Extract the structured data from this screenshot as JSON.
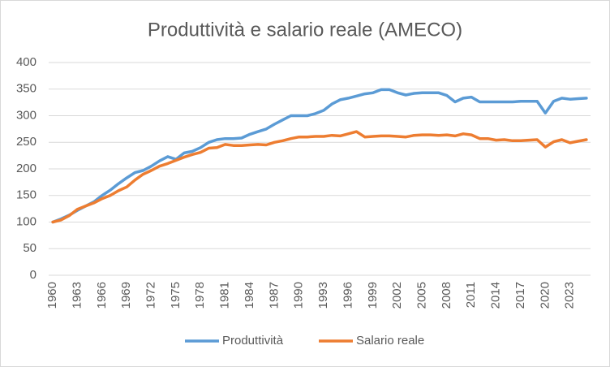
{
  "chart_data": {
    "type": "line",
    "title": "Produttività e salario reale (AMECO)",
    "categories": [
      "1960",
      null,
      null,
      "1963",
      null,
      null,
      "1966",
      null,
      null,
      "1969",
      null,
      null,
      "1972",
      null,
      null,
      "1975",
      null,
      null,
      "1978",
      null,
      null,
      "1981",
      null,
      null,
      "1984",
      null,
      null,
      "1987",
      null,
      null,
      "1990",
      null,
      null,
      "1993",
      null,
      null,
      "1996",
      null,
      null,
      "1999",
      null,
      null,
      "2002",
      null,
      null,
      "2005",
      null,
      null,
      "2008",
      null,
      null,
      "2011",
      null,
      null,
      "2014",
      null,
      null,
      "2017",
      null,
      null,
      "2020",
      null,
      null,
      "2023",
      null,
      null
    ],
    "series": [
      {
        "name": "Produttività",
        "color": "#5b9bd5",
        "values": [
          100,
          106,
          113,
          122,
          130,
          138,
          150,
          160,
          172,
          183,
          193,
          197,
          205,
          215,
          223,
          218,
          230,
          233,
          240,
          250,
          255,
          257,
          257,
          258,
          265,
          270,
          275,
          284,
          292,
          300,
          300,
          300,
          304,
          310,
          322,
          330,
          333,
          337,
          341,
          343,
          349,
          349,
          343,
          339,
          342,
          343,
          343,
          343,
          338,
          326,
          333,
          335,
          326,
          326,
          326,
          326,
          326,
          327,
          327,
          327,
          305,
          327,
          333,
          331,
          332,
          333
        ]
      },
      {
        "name": "Salario reale",
        "color": "#ed7d31",
        "values": [
          100,
          104,
          112,
          124,
          130,
          136,
          144,
          150,
          159,
          166,
          179,
          190,
          197,
          205,
          210,
          216,
          222,
          227,
          231,
          239,
          240,
          246,
          244,
          244,
          245,
          246,
          245,
          250,
          253,
          257,
          260,
          260,
          261,
          261,
          263,
          262,
          266,
          270,
          260,
          261,
          262,
          262,
          261,
          260,
          263,
          264,
          264,
          263,
          264,
          262,
          266,
          264,
          257,
          257,
          254,
          255,
          253,
          253,
          254,
          255,
          241,
          251,
          255,
          249,
          252,
          255
        ]
      }
    ],
    "ylim": [
      0,
      400
    ],
    "yticks": [
      0,
      50,
      100,
      150,
      200,
      250,
      300,
      350,
      400
    ],
    "grid": true,
    "legend": "bottom"
  }
}
